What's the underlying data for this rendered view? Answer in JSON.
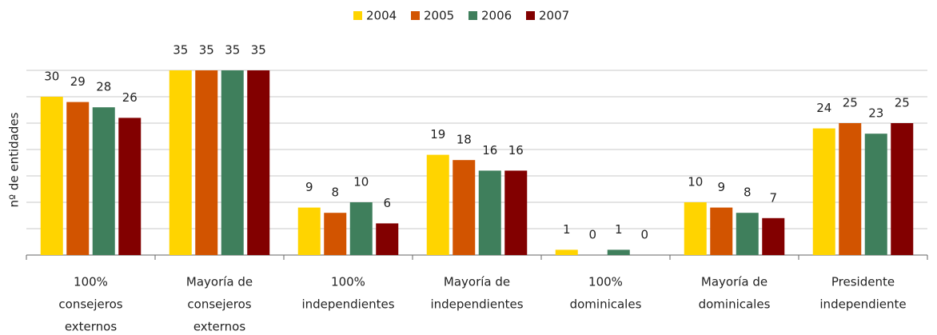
{
  "chart_data": {
    "type": "bar",
    "y_label": "nº de entidades",
    "categories": [
      [
        "100%",
        "consejeros",
        "externos"
      ],
      [
        "Mayoría de",
        "consejeros",
        "externos"
      ],
      [
        "100%",
        "independientes"
      ],
      [
        "Mayoría de",
        "independientes"
      ],
      [
        "100%",
        "dominicales"
      ],
      [
        "Mayoría de",
        "dominicales"
      ],
      [
        "Presidente",
        "independiente"
      ]
    ],
    "series": [
      {
        "name": "2004",
        "color": "#ffd400",
        "values": [
          30,
          35,
          9,
          19,
          1,
          10,
          24
        ]
      },
      {
        "name": "2005",
        "color": "#d25400",
        "values": [
          29,
          35,
          8,
          18,
          0,
          9,
          25
        ]
      },
      {
        "name": "2006",
        "color": "#3f7f5c",
        "values": [
          28,
          35,
          10,
          16,
          1,
          8,
          23
        ]
      },
      {
        "name": "2007",
        "color": "#820000",
        "values": [
          26,
          35,
          6,
          16,
          0,
          7,
          25
        ]
      }
    ],
    "ylim": [
      0,
      35
    ],
    "yticks": [
      0,
      5,
      10,
      15,
      20,
      25,
      30,
      35
    ],
    "grid": true,
    "legend": "top"
  }
}
